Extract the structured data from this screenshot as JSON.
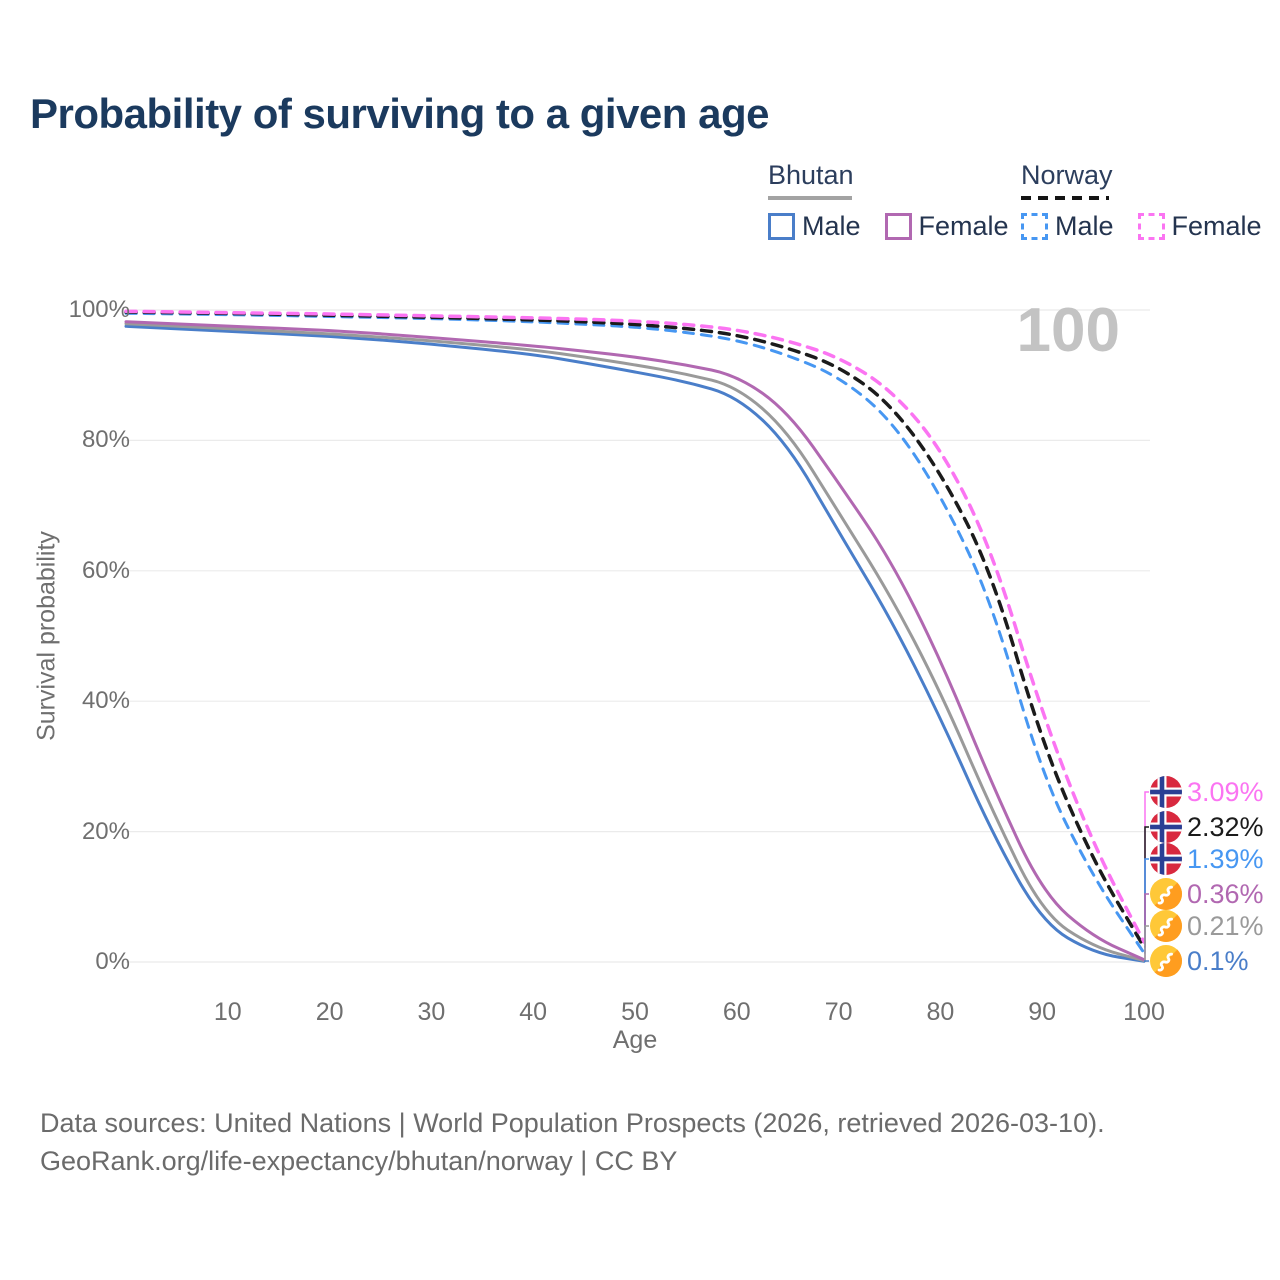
{
  "title": "Probability of surviving to a given age",
  "watermark_age": "100",
  "legend": {
    "groups": [
      {
        "country": "Bhutan",
        "line_style": "solid",
        "underline_color": "#a3a3a3",
        "items": [
          {
            "label": "Male",
            "color": "#4a7ec9",
            "dashed": false
          },
          {
            "label": "Female",
            "color": "#b168b1",
            "dashed": false
          }
        ]
      },
      {
        "country": "Norway",
        "line_style": "dashed",
        "underline_color": "#141414",
        "items": [
          {
            "label": "Male",
            "color": "#4797f2",
            "dashed": true
          },
          {
            "label": "Female",
            "color": "#fb74f2",
            "dashed": true
          }
        ]
      }
    ]
  },
  "axes": {
    "y_title": "Survival probability",
    "x_title": "Age",
    "y_ticks": [
      {
        "value": 0,
        "label": "0%"
      },
      {
        "value": 20,
        "label": "20%"
      },
      {
        "value": 40,
        "label": "40%"
      },
      {
        "value": 60,
        "label": "60%"
      },
      {
        "value": 80,
        "label": "80%"
      },
      {
        "value": 100,
        "label": "100%"
      }
    ],
    "x_ticks": [
      {
        "value": 10,
        "label": "10"
      },
      {
        "value": 20,
        "label": "20"
      },
      {
        "value": 30,
        "label": "30"
      },
      {
        "value": 40,
        "label": "40"
      },
      {
        "value": 50,
        "label": "50"
      },
      {
        "value": 60,
        "label": "60"
      },
      {
        "value": 70,
        "label": "70"
      },
      {
        "value": 80,
        "label": "80"
      },
      {
        "value": 90,
        "label": "90"
      },
      {
        "value": 100,
        "label": "100"
      }
    ]
  },
  "chart_data": {
    "type": "line",
    "x": [
      0,
      10,
      20,
      30,
      40,
      45,
      50,
      55,
      60,
      65,
      70,
      75,
      80,
      85,
      90,
      95,
      100
    ],
    "xlabel": "Age",
    "ylabel": "Survival probability",
    "xlim": [
      0,
      100
    ],
    "ylim": [
      0,
      100
    ],
    "grid": "horizontal",
    "legend_position": "top-right",
    "series": [
      {
        "name": "Bhutan Male",
        "country": "Bhutan",
        "sex": "Male",
        "color": "#4a7ec9",
        "dashed": false,
        "width": 3,
        "end_label": "0.1%",
        "flag": "bhutan",
        "values": [
          97.5,
          96.7,
          96.0,
          94.8,
          93.2,
          91.9,
          90.5,
          89.0,
          86.8,
          79.5,
          66.0,
          53.0,
          37.5,
          20.0,
          6.0,
          1.4,
          0.1
        ]
      },
      {
        "name": "Bhutan Both sexes",
        "country": "Bhutan",
        "sex": "Both",
        "color": "#9a9a9a",
        "dashed": false,
        "width": 3,
        "end_label": "0.21%",
        "flag": "bhutan",
        "values": [
          97.9,
          97.1,
          96.4,
          95.3,
          93.9,
          92.8,
          91.6,
          90.2,
          88.3,
          81.5,
          69.0,
          56.5,
          41.5,
          23.5,
          7.5,
          2.3,
          0.21
        ]
      },
      {
        "name": "Bhutan Female",
        "country": "Bhutan",
        "sex": "Female",
        "color": "#b168b1",
        "dashed": false,
        "width": 3,
        "end_label": "0.36%",
        "flag": "bhutan",
        "values": [
          98.2,
          97.5,
          96.9,
          95.8,
          94.5,
          93.7,
          92.8,
          91.6,
          90.0,
          84.5,
          73.5,
          62.0,
          46.5,
          27.5,
          10.6,
          3.8,
          0.36
        ]
      },
      {
        "name": "Norway Male",
        "country": "Norway",
        "sex": "Male",
        "color": "#4797f2",
        "dashed": true,
        "width": 3,
        "end_label": "1.39%",
        "flag": "norway",
        "values": [
          99.5,
          99.3,
          99.0,
          98.7,
          98.2,
          97.8,
          97.4,
          96.6,
          95.4,
          93.1,
          89.8,
          83.5,
          71.8,
          55.5,
          28.5,
          13.0,
          1.39
        ]
      },
      {
        "name": "Norway Both sexes",
        "country": "Norway",
        "sex": "Both",
        "color": "#1b1b1b",
        "dashed": true,
        "width": 3.5,
        "end_label": "2.32%",
        "flag": "norway",
        "values": [
          99.7,
          99.5,
          99.2,
          98.9,
          98.5,
          98.2,
          97.8,
          97.2,
          96.2,
          94.2,
          91.4,
          85.8,
          75.2,
          60.0,
          33.5,
          15.5,
          2.32
        ]
      },
      {
        "name": "Norway Female",
        "country": "Norway",
        "sex": "Female",
        "color": "#fb74f2",
        "dashed": true,
        "width": 3.5,
        "end_label": "3.09%",
        "flag": "norway",
        "values": [
          99.8,
          99.6,
          99.4,
          99.1,
          98.8,
          98.6,
          98.3,
          97.8,
          97.0,
          95.3,
          92.8,
          88.0,
          79.0,
          63.5,
          38.0,
          18.0,
          3.09
        ]
      }
    ],
    "end_labels_top_to_bottom": [
      "3.09%",
      "2.32%",
      "1.39%",
      "0.36%",
      "0.21%",
      "0.1%"
    ]
  },
  "source": {
    "line1": "Data sources: United Nations | World Population Prospects (2026, retrieved 2026-03-10).",
    "line2": "GeoRank.org/life-expectancy/bhutan/norway | CC BY"
  }
}
